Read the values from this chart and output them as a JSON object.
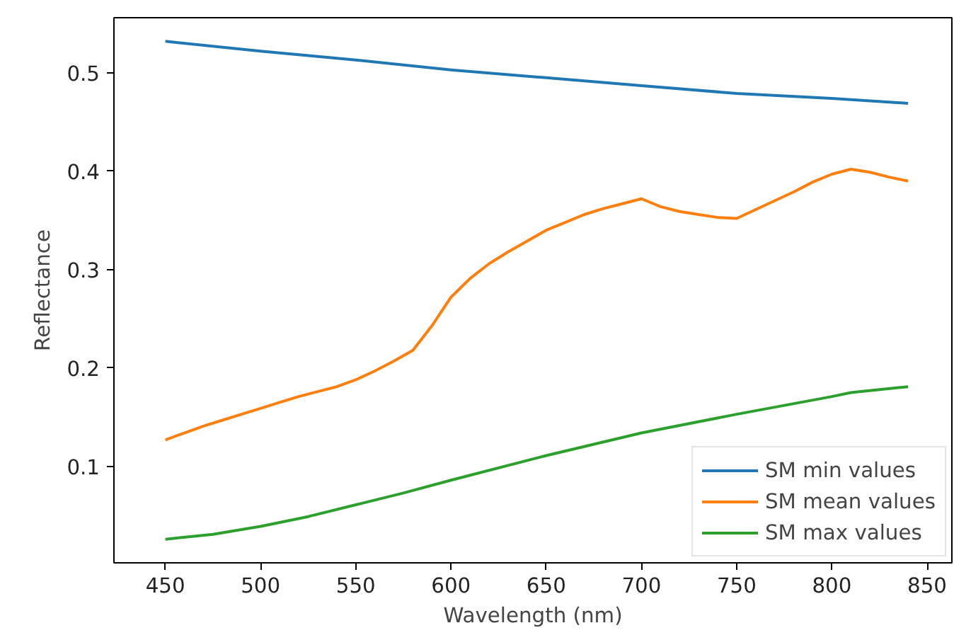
{
  "chart_data": {
    "type": "line",
    "xlabel": "Wavelength (nm)",
    "ylabel": "Reflectance",
    "xlim": [
      423,
      863
    ],
    "ylim": [
      0.002,
      0.556
    ],
    "xticks": [
      450,
      500,
      550,
      600,
      650,
      700,
      750,
      800,
      850
    ],
    "yticks": [
      0.1,
      0.2,
      0.3,
      0.4,
      0.5
    ],
    "grid": false,
    "legend": "bottom right",
    "series": [
      {
        "name": "SM min values",
        "color": "#1f77b4",
        "x": [
          450,
          500,
          550,
          600,
          650,
          700,
          750,
          800,
          840
        ],
        "values": [
          0.532,
          0.522,
          0.513,
          0.503,
          0.495,
          0.487,
          0.479,
          0.474,
          0.469
        ]
      },
      {
        "name": "SM mean values",
        "color": "#ff7f0e",
        "x": [
          450,
          460,
          470,
          480,
          490,
          500,
          510,
          520,
          530,
          540,
          550,
          560,
          570,
          580,
          590,
          600,
          610,
          620,
          630,
          640,
          650,
          660,
          670,
          680,
          690,
          700,
          710,
          720,
          730,
          740,
          750,
          760,
          770,
          780,
          790,
          800,
          810,
          820,
          830,
          840
        ],
        "values": [
          0.127,
          0.134,
          0.141,
          0.147,
          0.153,
          0.159,
          0.165,
          0.171,
          0.176,
          0.181,
          0.188,
          0.197,
          0.207,
          0.218,
          0.243,
          0.272,
          0.291,
          0.306,
          0.318,
          0.329,
          0.34,
          0.348,
          0.356,
          0.362,
          0.367,
          0.372,
          0.364,
          0.359,
          0.356,
          0.353,
          0.352,
          0.361,
          0.37,
          0.379,
          0.389,
          0.397,
          0.402,
          0.399,
          0.394,
          0.39
        ]
      },
      {
        "name": "SM max values",
        "color": "#2ca02c",
        "x": [
          450,
          475,
          500,
          525,
          550,
          575,
          600,
          650,
          700,
          750,
          800,
          810,
          840
        ],
        "values": [
          0.026,
          0.031,
          0.039,
          0.049,
          0.061,
          0.073,
          0.086,
          0.111,
          0.134,
          0.153,
          0.171,
          0.175,
          0.181
        ]
      }
    ]
  }
}
